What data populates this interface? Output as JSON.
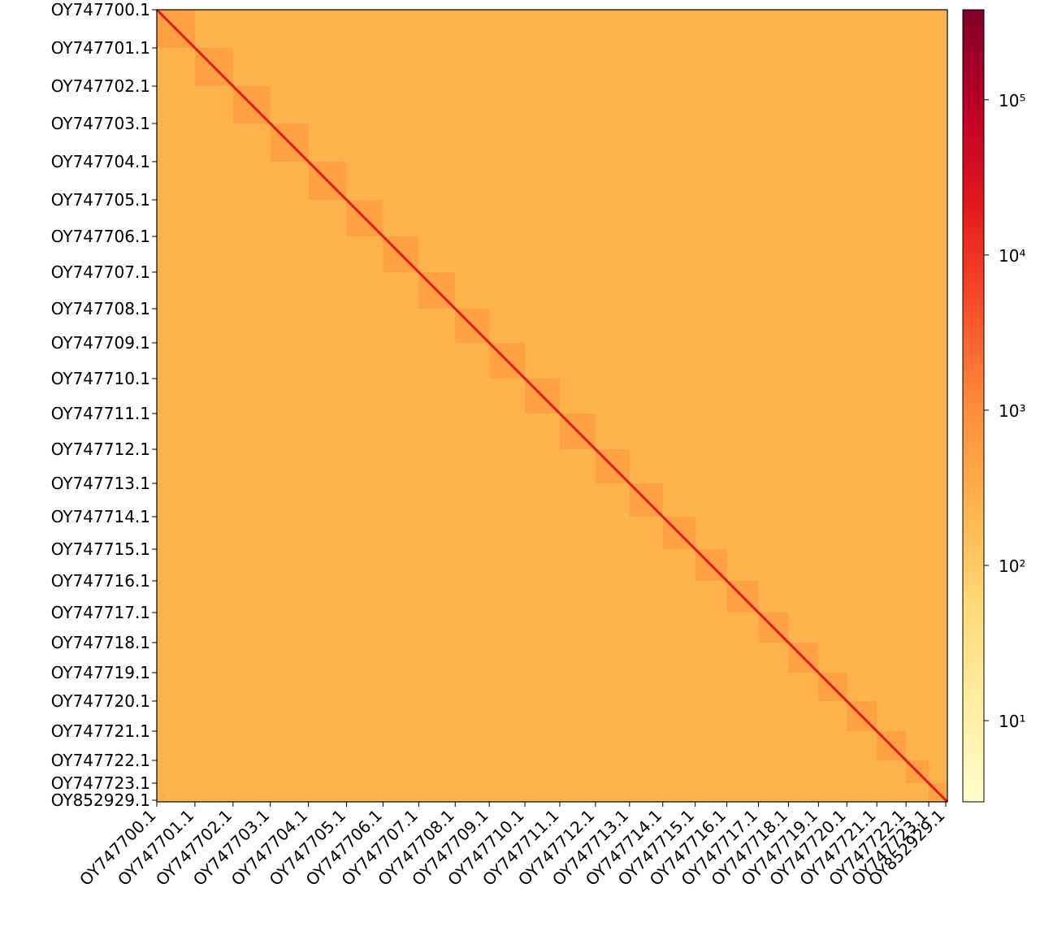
{
  "chart_data": {
    "type": "heatmap",
    "xlim": [
      0,
      975
    ],
    "ylim": [
      0,
      975
    ],
    "xticks": [
      {
        "value": 0,
        "label": "OY747700.1"
      },
      {
        "value": 47,
        "label": "OY747701.1"
      },
      {
        "value": 94,
        "label": "OY747702.1"
      },
      {
        "value": 140,
        "label": "OY747703.1"
      },
      {
        "value": 187,
        "label": "OY747704.1"
      },
      {
        "value": 234,
        "label": "OY747705.1"
      },
      {
        "value": 279,
        "label": "OY747706.1"
      },
      {
        "value": 323,
        "label": "OY747707.1"
      },
      {
        "value": 368,
        "label": "OY747708.1"
      },
      {
        "value": 410,
        "label": "OY747709.1"
      },
      {
        "value": 454,
        "label": "OY747710.1"
      },
      {
        "value": 497,
        "label": "OY747711.1"
      },
      {
        "value": 541,
        "label": "OY747712.1"
      },
      {
        "value": 583,
        "label": "OY747713.1"
      },
      {
        "value": 624,
        "label": "OY747714.1"
      },
      {
        "value": 664,
        "label": "OY747715.1"
      },
      {
        "value": 703,
        "label": "OY747716.1"
      },
      {
        "value": 742,
        "label": "OY747717.1"
      },
      {
        "value": 779,
        "label": "OY747718.1"
      },
      {
        "value": 816,
        "label": "OY747719.1"
      },
      {
        "value": 851,
        "label": "OY747720.1"
      },
      {
        "value": 888,
        "label": "OY747721.1"
      },
      {
        "value": 924,
        "label": "OY747722.1"
      },
      {
        "value": 952,
        "label": "OY747723.1"
      },
      {
        "value": 973,
        "label": "OY852929.1"
      }
    ],
    "yticks": [
      {
        "value": 0,
        "label": "OY747700.1"
      },
      {
        "value": 47,
        "label": "OY747701.1"
      },
      {
        "value": 94,
        "label": "OY747702.1"
      },
      {
        "value": 140,
        "label": "OY747703.1"
      },
      {
        "value": 187,
        "label": "OY747704.1"
      },
      {
        "value": 234,
        "label": "OY747705.1"
      },
      {
        "value": 279,
        "label": "OY747706.1"
      },
      {
        "value": 323,
        "label": "OY747707.1"
      },
      {
        "value": 368,
        "label": "OY747708.1"
      },
      {
        "value": 410,
        "label": "OY747709.1"
      },
      {
        "value": 454,
        "label": "OY747710.1"
      },
      {
        "value": 497,
        "label": "OY747711.1"
      },
      {
        "value": 541,
        "label": "OY747712.1"
      },
      {
        "value": 583,
        "label": "OY747713.1"
      },
      {
        "value": 624,
        "label": "OY747714.1"
      },
      {
        "value": 664,
        "label": "OY747715.1"
      },
      {
        "value": 703,
        "label": "OY747716.1"
      },
      {
        "value": 742,
        "label": "OY747717.1"
      },
      {
        "value": 779,
        "label": "OY747718.1"
      },
      {
        "value": 816,
        "label": "OY747719.1"
      },
      {
        "value": 851,
        "label": "OY747720.1"
      },
      {
        "value": 888,
        "label": "OY747721.1"
      },
      {
        "value": 924,
        "label": "OY747722.1"
      },
      {
        "value": 952,
        "label": "OY747723.1"
      },
      {
        "value": 973,
        "label": "OY852929.1"
      }
    ],
    "inter_value": 250,
    "intra_value": 500,
    "diagonal_value": 20000,
    "clim": [
      3,
      380000
    ],
    "color_log_scale": true,
    "colormap": [
      "#ffffcc",
      "#ffeda0",
      "#fed976",
      "#feb24c",
      "#fd8d3c",
      "#fc4e2a",
      "#e31a1c",
      "#bd0026",
      "#800026"
    ],
    "cticks": [
      {
        "value": 10,
        "label": "10¹"
      },
      {
        "value": 100,
        "label": "10²"
      },
      {
        "value": 1000,
        "label": "10³"
      },
      {
        "value": 10000,
        "label": "10⁴"
      },
      {
        "value": 100000,
        "label": "10⁵"
      }
    ]
  }
}
